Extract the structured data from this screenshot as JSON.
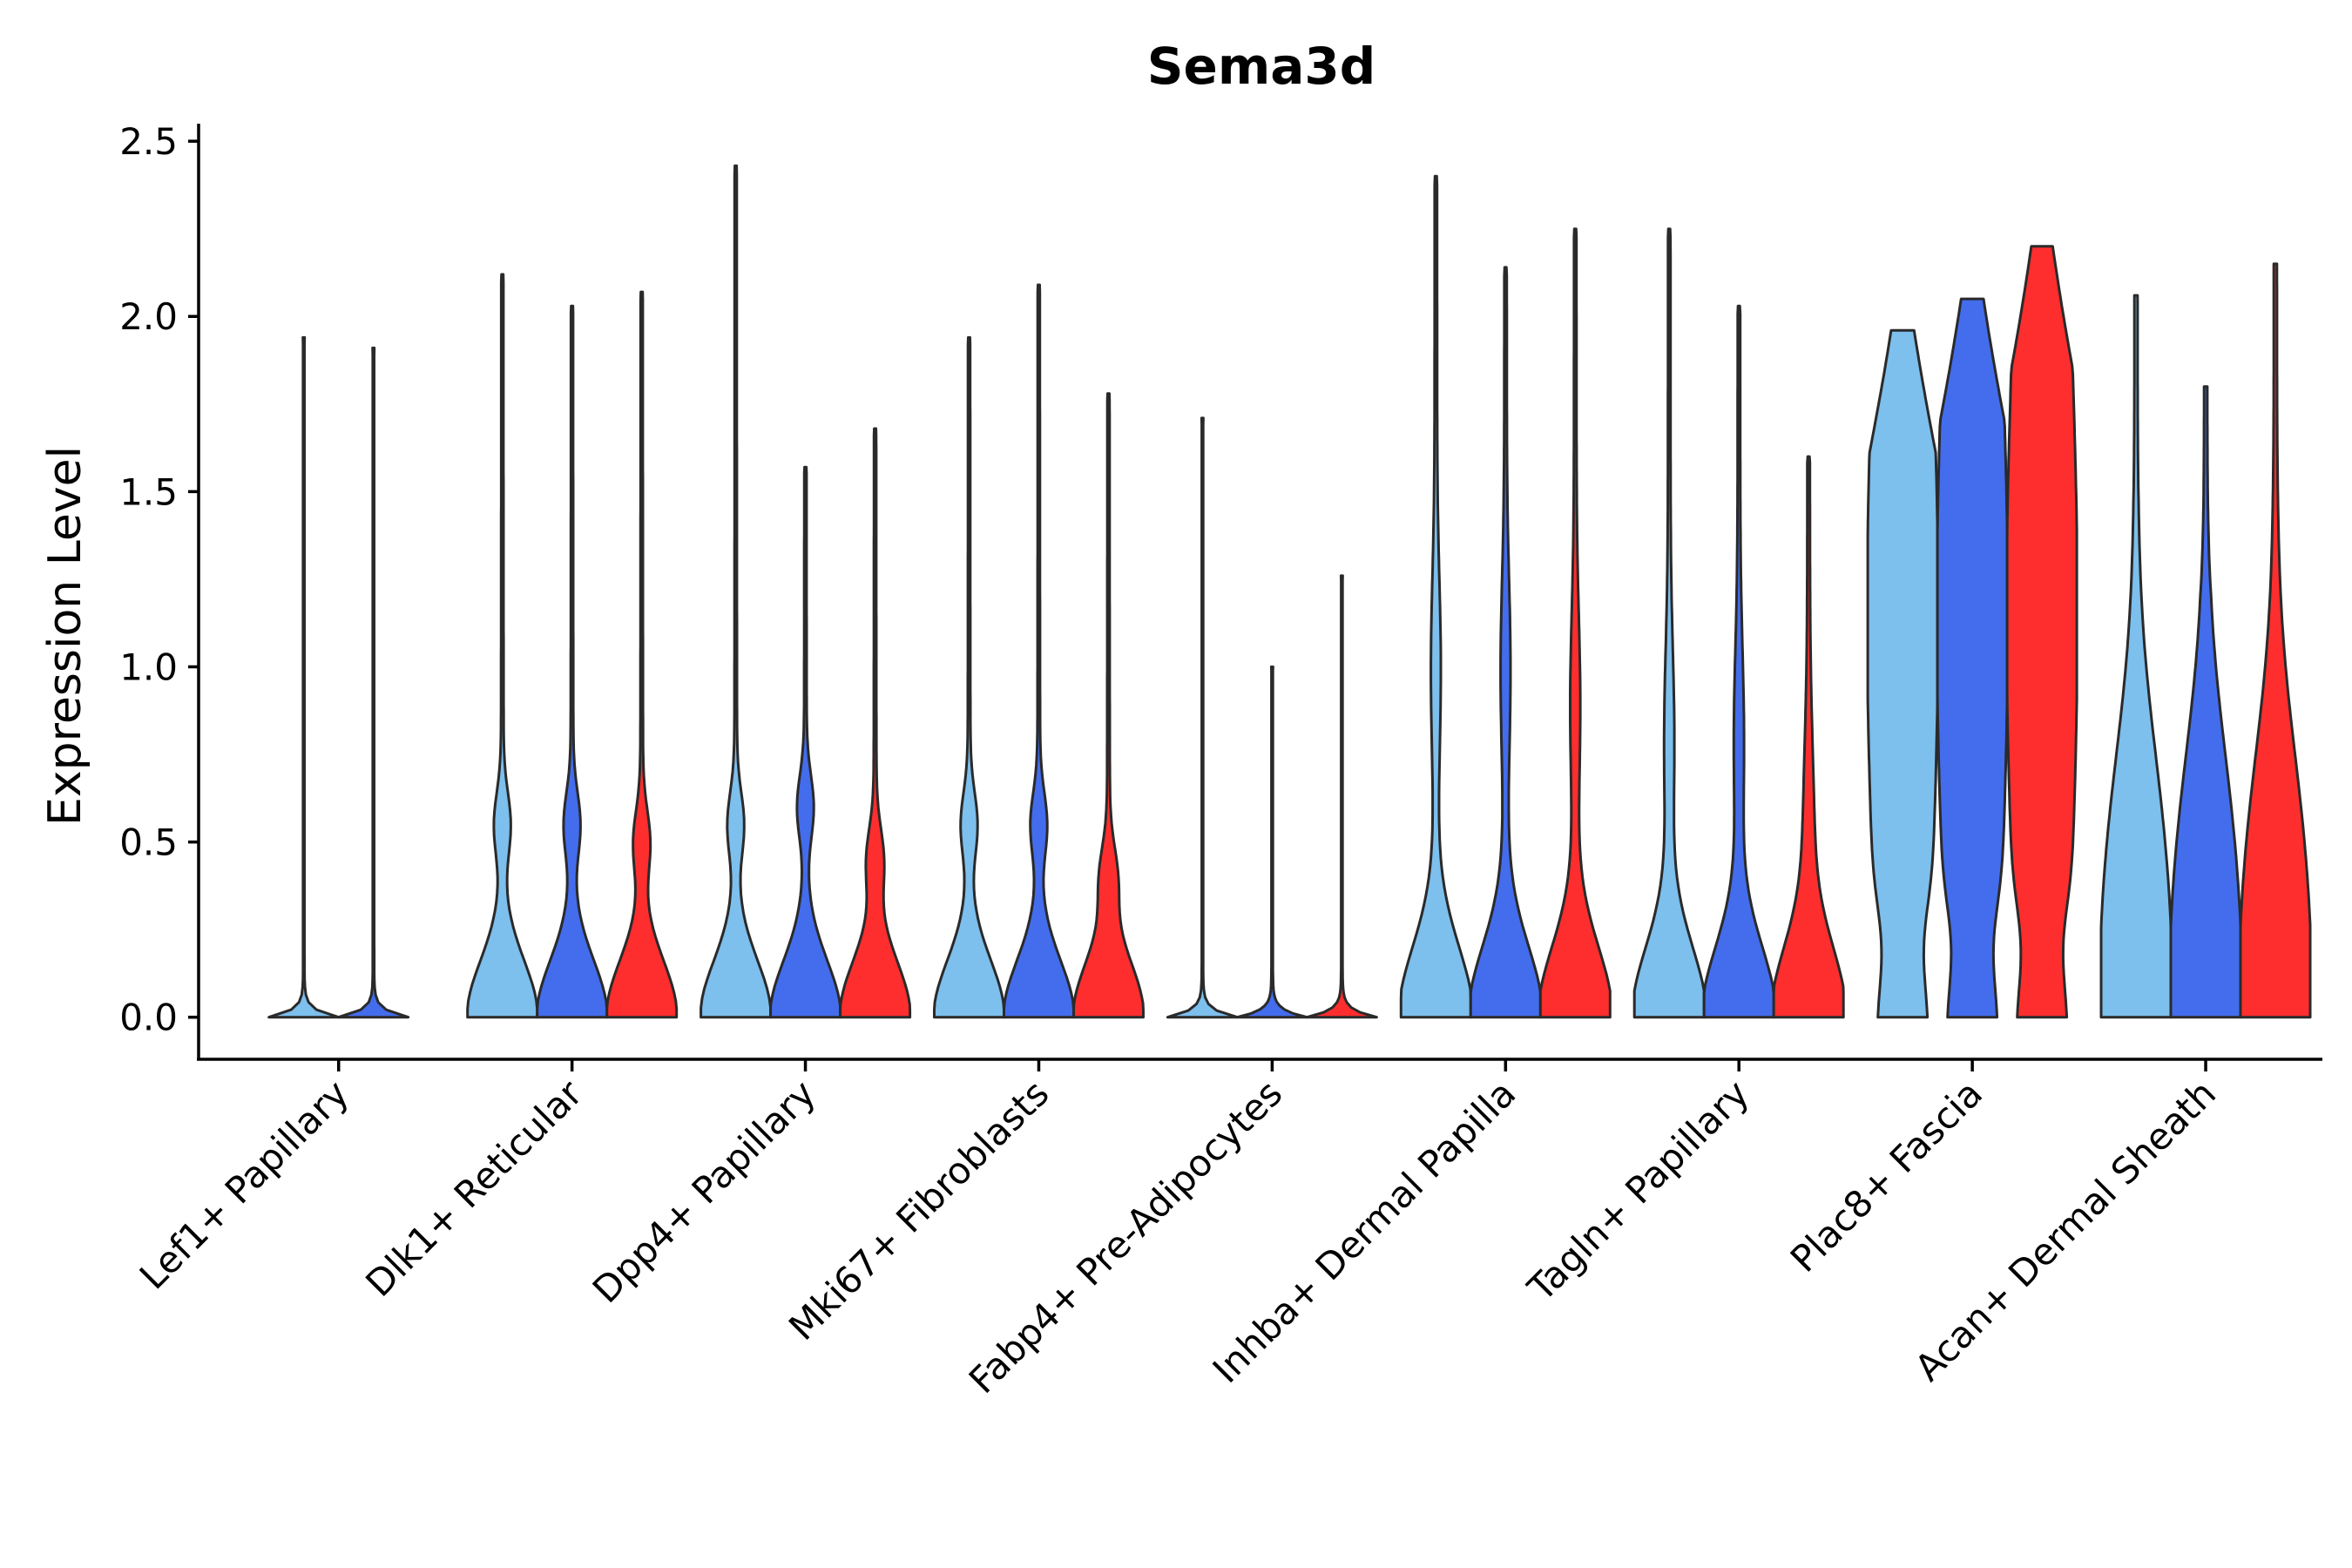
{
  "chart_data": {
    "type": "violin",
    "title": "Sema3d",
    "xlabel": "",
    "ylabel": "Expression Level",
    "ylim": [
      -0.12,
      2.55
    ],
    "yticks": [
      "0.0",
      "0.5",
      "1.0",
      "1.5",
      "2.0",
      "2.5"
    ],
    "grid": false,
    "legend": "none",
    "series_colors": [
      "#7dbfed",
      "#436ded",
      "#ff2e2e"
    ],
    "categories": [
      "Lef1+ Papillary",
      "Dlk1+ Reticular",
      "Dpp4+ Papillary",
      "Mki67+ Fibroblasts",
      "Fabp4+ Pre-Adipocytes",
      "Inhba+ Dermal Papilla",
      "Tagln+ Papillary",
      "Plac8+ Fascia",
      "Acan+ Dermal Sheath"
    ],
    "groups": [
      {
        "category": "Lef1+ Papillary",
        "violins": [
          {
            "series": 0,
            "max": 1.94,
            "shape": "flat"
          },
          {
            "series": 1,
            "max": 1.91,
            "shape": "flat"
          }
        ]
      },
      {
        "category": "Dlk1+ Reticular",
        "violins": [
          {
            "series": 0,
            "max": 2.12,
            "shape": "zero",
            "bump": 0.55
          },
          {
            "series": 1,
            "max": 2.03,
            "shape": "zero",
            "bump": 0.55
          },
          {
            "series": 2,
            "max": 2.07,
            "shape": "zero",
            "bump": 0.5
          }
        ]
      },
      {
        "category": "Dpp4+ Papillary",
        "violins": [
          {
            "series": 0,
            "max": 2.43,
            "shape": "zero",
            "bump": 0.55
          },
          {
            "series": 1,
            "max": 1.57,
            "shape": "zero",
            "bump": 0.6
          },
          {
            "series": 2,
            "max": 1.68,
            "shape": "zero",
            "bump": 0.45
          }
        ]
      },
      {
        "category": "Mki67+ Fibroblasts",
        "violins": [
          {
            "series": 0,
            "max": 1.94,
            "shape": "zero",
            "bump": 0.55
          },
          {
            "series": 1,
            "max": 2.09,
            "shape": "zero",
            "bump": 0.55
          },
          {
            "series": 2,
            "max": 1.78,
            "shape": "zero",
            "bump": 0.4
          }
        ]
      },
      {
        "category": "Fabp4+ Pre-Adipocytes",
        "violins": [
          {
            "series": 0,
            "max": 1.71,
            "shape": "flat"
          },
          {
            "series": 1,
            "max": 1.0,
            "shape": "flat"
          },
          {
            "series": 2,
            "max": 1.26,
            "shape": "flat"
          }
        ]
      },
      {
        "category": "Inhba+ Dermal Papilla",
        "violins": [
          {
            "series": 0,
            "max": 2.4,
            "shape": "wide",
            "bump": 1.0
          },
          {
            "series": 1,
            "max": 2.14,
            "shape": "wide",
            "bump": 1.0
          },
          {
            "series": 2,
            "max": 2.25,
            "shape": "wide",
            "bump": 0.9
          }
        ]
      },
      {
        "category": "Tagln+ Papillary",
        "violins": [
          {
            "series": 0,
            "max": 2.25,
            "shape": "wide",
            "bump": 0.8
          },
          {
            "series": 1,
            "max": 2.03,
            "shape": "wide",
            "bump": 0.8
          },
          {
            "series": 2,
            "max": 1.6,
            "shape": "wide",
            "bump": 0.55
          }
        ]
      },
      {
        "category": "Plac8+ Fascia",
        "violins": [
          {
            "series": 0,
            "max": 1.96,
            "shape": "broad"
          },
          {
            "series": 1,
            "max": 2.05,
            "shape": "broad"
          },
          {
            "series": 2,
            "max": 2.2,
            "shape": "broad"
          }
        ]
      },
      {
        "category": "Acan+ Dermal Sheath",
        "violins": [
          {
            "series": 0,
            "max": 2.06,
            "shape": "tallbase"
          },
          {
            "series": 1,
            "max": 1.8,
            "shape": "tallbase"
          },
          {
            "series": 2,
            "max": 2.15,
            "shape": "tallbase"
          }
        ]
      }
    ]
  }
}
